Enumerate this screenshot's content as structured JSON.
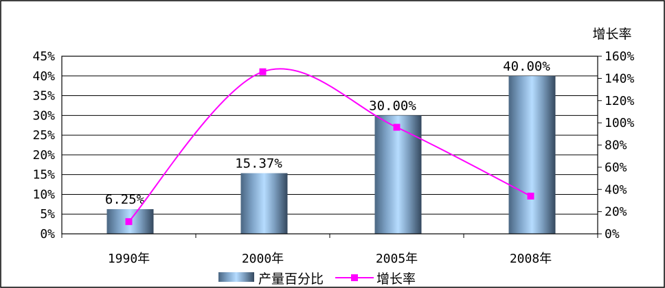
{
  "chart_data": {
    "type": "bar",
    "title": "",
    "categories": [
      "1990年",
      "2000年",
      "2005年",
      "2008年"
    ],
    "series": [
      {
        "name": "产量百分比",
        "type": "bar",
        "axis": "left",
        "values": [
          6.25,
          15.37,
          30.0,
          40.0
        ],
        "labels": [
          "6.25%",
          "15.37%",
          "30.00%",
          "40.00%"
        ]
      },
      {
        "name": "增长率",
        "type": "line",
        "axis": "right",
        "values": [
          11,
          146,
          96,
          34
        ],
        "color": "#ff00ff"
      }
    ],
    "y_left": {
      "range": [
        0,
        45
      ],
      "ticks": [
        "0%",
        "5%",
        "10%",
        "15%",
        "20%",
        "25%",
        "30%",
        "35%",
        "40%",
        "45%"
      ]
    },
    "y_right": {
      "label": "增长率",
      "range": [
        0,
        160
      ],
      "ticks": [
        "0%",
        "20%",
        "40%",
        "60%",
        "80%",
        "100%",
        "120%",
        "140%",
        "160%"
      ]
    },
    "grid": true,
    "legend": "bottom"
  }
}
